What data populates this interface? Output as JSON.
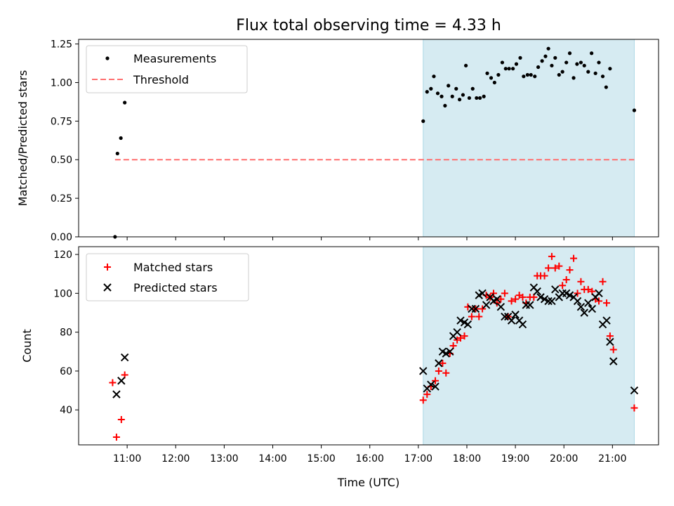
{
  "chart_data": {
    "type": "scatter",
    "title": "Flux total observing time = 4.33 h",
    "xlabel": "Time (UTC)",
    "x_ticks": [
      "11:00",
      "12:00",
      "13:00",
      "14:00",
      "15:00",
      "16:00",
      "17:00",
      "18:00",
      "19:00",
      "20:00",
      "21:00"
    ],
    "x_range_hours": [
      10.0,
      21.95
    ],
    "observing_window_hours": [
      17.1,
      21.45
    ],
    "panels": [
      {
        "ylabel": "Matched/Predicted stars",
        "ylim": [
          0,
          1.28
        ],
        "yticks": [
          "0.00",
          "0.25",
          "0.50",
          "0.75",
          "1.00",
          "1.25"
        ],
        "legend": {
          "placement": "top-left",
          "entries": [
            "Measurements",
            "Threshold"
          ]
        },
        "threshold": {
          "name": "Threshold",
          "value": 0.5,
          "x_start": 10.75,
          "x_end": 21.45,
          "color": "#ff7070"
        },
        "measurements": {
          "name": "Measurements",
          "color": "#000000",
          "points": [
            [
              10.75,
              0.0
            ],
            [
              10.8,
              0.54
            ],
            [
              10.87,
              0.64
            ],
            [
              10.95,
              0.87
            ],
            [
              17.1,
              0.75
            ],
            [
              17.18,
              0.94
            ],
            [
              17.26,
              0.96
            ],
            [
              17.32,
              1.04
            ],
            [
              17.4,
              0.93
            ],
            [
              17.48,
              0.91
            ],
            [
              17.55,
              0.85
            ],
            [
              17.62,
              0.98
            ],
            [
              17.7,
              0.91
            ],
            [
              17.78,
              0.96
            ],
            [
              17.85,
              0.89
            ],
            [
              17.92,
              0.92
            ],
            [
              17.98,
              1.11
            ],
            [
              18.05,
              0.9
            ],
            [
              18.12,
              0.96
            ],
            [
              18.2,
              0.9
            ],
            [
              18.27,
              0.9
            ],
            [
              18.35,
              0.91
            ],
            [
              18.42,
              1.06
            ],
            [
              18.5,
              1.03
            ],
            [
              18.57,
              1.0
            ],
            [
              18.65,
              1.05
            ],
            [
              18.73,
              1.13
            ],
            [
              18.8,
              1.09
            ],
            [
              18.87,
              1.09
            ],
            [
              18.95,
              1.09
            ],
            [
              19.02,
              1.12
            ],
            [
              19.1,
              1.16
            ],
            [
              19.17,
              1.04
            ],
            [
              19.25,
              1.05
            ],
            [
              19.32,
              1.05
            ],
            [
              19.4,
              1.04
            ],
            [
              19.47,
              1.1
            ],
            [
              19.55,
              1.14
            ],
            [
              19.62,
              1.17
            ],
            [
              19.68,
              1.22
            ],
            [
              19.75,
              1.11
            ],
            [
              19.82,
              1.16
            ],
            [
              19.9,
              1.05
            ],
            [
              19.97,
              1.07
            ],
            [
              20.05,
              1.13
            ],
            [
              20.12,
              1.19
            ],
            [
              20.2,
              1.03
            ],
            [
              20.27,
              1.12
            ],
            [
              20.35,
              1.13
            ],
            [
              20.42,
              1.11
            ],
            [
              20.5,
              1.07
            ],
            [
              20.57,
              1.19
            ],
            [
              20.65,
              1.06
            ],
            [
              20.72,
              1.13
            ],
            [
              20.8,
              1.04
            ],
            [
              20.87,
              0.97
            ],
            [
              20.95,
              1.09
            ],
            [
              21.45,
              0.82
            ]
          ]
        }
      },
      {
        "ylabel": "Count",
        "ylim": [
          22,
          124
        ],
        "yticks": [
          "40",
          "60",
          "80",
          "100",
          "120"
        ],
        "legend": {
          "placement": "top-left",
          "entries": [
            "Matched stars",
            "Predicted stars"
          ]
        },
        "matched": {
          "name": "Matched stars",
          "color": "#ff0000",
          "points": [
            [
              10.7,
              54
            ],
            [
              10.78,
              26
            ],
            [
              10.88,
              35
            ],
            [
              10.95,
              58
            ],
            [
              17.1,
              45
            ],
            [
              17.18,
              48
            ],
            [
              17.26,
              52
            ],
            [
              17.35,
              55
            ],
            [
              17.42,
              60
            ],
            [
              17.5,
              64
            ],
            [
              17.57,
              59
            ],
            [
              17.65,
              69
            ],
            [
              17.72,
              73
            ],
            [
              17.8,
              76
            ],
            [
              17.87,
              77
            ],
            [
              17.95,
              78
            ],
            [
              18.02,
              93
            ],
            [
              18.1,
              88
            ],
            [
              18.18,
              92
            ],
            [
              18.25,
              88
            ],
            [
              18.32,
              92
            ],
            [
              18.4,
              99
            ],
            [
              18.48,
              98
            ],
            [
              18.55,
              100
            ],
            [
              18.62,
              95
            ],
            [
              18.7,
              97
            ],
            [
              18.78,
              100
            ],
            [
              18.85,
              88
            ],
            [
              18.92,
              96
            ],
            [
              19.0,
              97
            ],
            [
              19.08,
              99
            ],
            [
              19.15,
              98
            ],
            [
              19.22,
              95
            ],
            [
              19.3,
              98
            ],
            [
              19.38,
              98
            ],
            [
              19.45,
              109
            ],
            [
              19.52,
              109
            ],
            [
              19.6,
              109
            ],
            [
              19.68,
              113
            ],
            [
              19.75,
              119
            ],
            [
              19.82,
              113
            ],
            [
              19.9,
              114
            ],
            [
              19.97,
              104
            ],
            [
              20.05,
              107
            ],
            [
              20.12,
              112
            ],
            [
              20.2,
              118
            ],
            [
              20.28,
              100
            ],
            [
              20.35,
              106
            ],
            [
              20.42,
              102
            ],
            [
              20.5,
              102
            ],
            [
              20.58,
              101
            ],
            [
              20.65,
              97
            ],
            [
              20.72,
              96
            ],
            [
              20.8,
              106
            ],
            [
              20.88,
              95
            ],
            [
              20.95,
              78
            ],
            [
              21.02,
              71
            ],
            [
              21.45,
              41
            ]
          ]
        },
        "predicted": {
          "name": "Predicted stars",
          "color": "#000000",
          "points": [
            [
              10.78,
              48
            ],
            [
              10.88,
              55
            ],
            [
              10.95,
              67
            ],
            [
              17.1,
              60
            ],
            [
              17.18,
              51
            ],
            [
              17.26,
              53
            ],
            [
              17.35,
              52
            ],
            [
              17.42,
              64
            ],
            [
              17.5,
              70
            ],
            [
              17.57,
              69
            ],
            [
              17.65,
              70
            ],
            [
              17.72,
              78
            ],
            [
              17.8,
              80
            ],
            [
              17.87,
              86
            ],
            [
              17.95,
              85
            ],
            [
              18.02,
              84
            ],
            [
              18.1,
              92
            ],
            [
              18.18,
              92
            ],
            [
              18.25,
              99
            ],
            [
              18.32,
              100
            ],
            [
              18.4,
              94
            ],
            [
              18.48,
              98
            ],
            [
              18.55,
              96
            ],
            [
              18.62,
              97
            ],
            [
              18.7,
              93
            ],
            [
              18.78,
              88
            ],
            [
              18.85,
              88
            ],
            [
              18.92,
              86
            ],
            [
              19.0,
              89
            ],
            [
              19.08,
              86
            ],
            [
              19.15,
              84
            ],
            [
              19.22,
              94
            ],
            [
              19.3,
              94
            ],
            [
              19.38,
              103
            ],
            [
              19.45,
              101
            ],
            [
              19.52,
              98
            ],
            [
              19.6,
              97
            ],
            [
              19.68,
              96
            ],
            [
              19.75,
              96
            ],
            [
              19.82,
              102
            ],
            [
              19.9,
              98
            ],
            [
              19.97,
              100
            ],
            [
              20.05,
              100
            ],
            [
              20.12,
              99
            ],
            [
              20.2,
              98
            ],
            [
              20.28,
              96
            ],
            [
              20.35,
              93
            ],
            [
              20.42,
              90
            ],
            [
              20.5,
              95
            ],
            [
              20.58,
              92
            ],
            [
              20.65,
              98
            ],
            [
              20.72,
              100
            ],
            [
              20.8,
              84
            ],
            [
              20.88,
              86
            ],
            [
              20.95,
              75
            ],
            [
              21.02,
              65
            ],
            [
              21.45,
              50
            ]
          ]
        }
      }
    ]
  }
}
